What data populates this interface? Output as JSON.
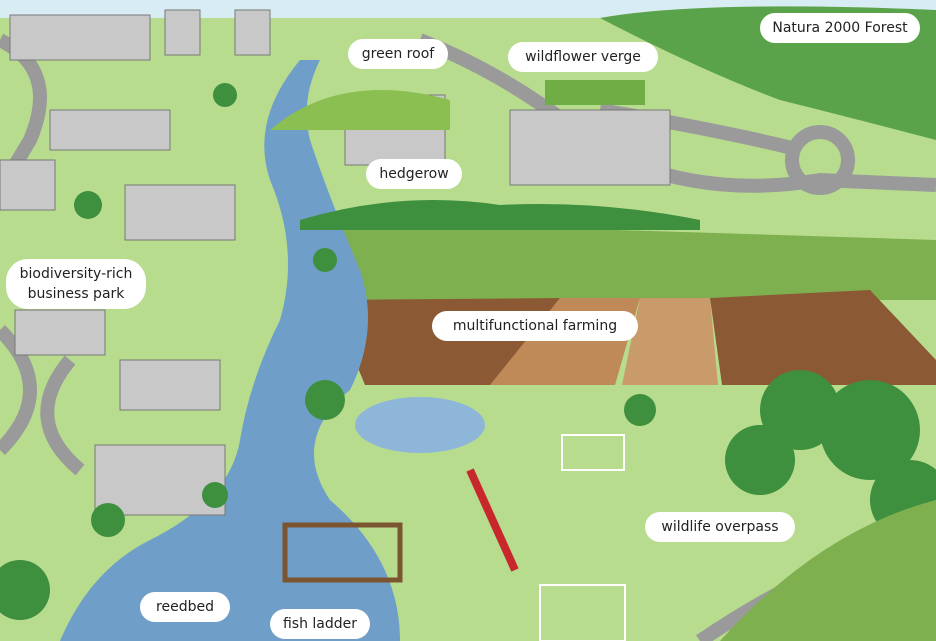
{
  "labels": [
    {
      "lines": [
        "green roof"
      ]
    },
    {
      "lines": [
        "wildflower verge"
      ]
    },
    {
      "lines": [
        "Natura 2000 Forest"
      ]
    },
    {
      "lines": [
        "hedgerow"
      ]
    },
    {
      "lines": [
        "biodiversity-rich",
        "business park"
      ]
    },
    {
      "lines": [
        "multifunctional farming"
      ]
    },
    {
      "lines": [
        "wildlife overpass"
      ]
    },
    {
      "lines": [
        "reedbed"
      ]
    },
    {
      "lines": [
        "fish ladder"
      ]
    }
  ]
}
